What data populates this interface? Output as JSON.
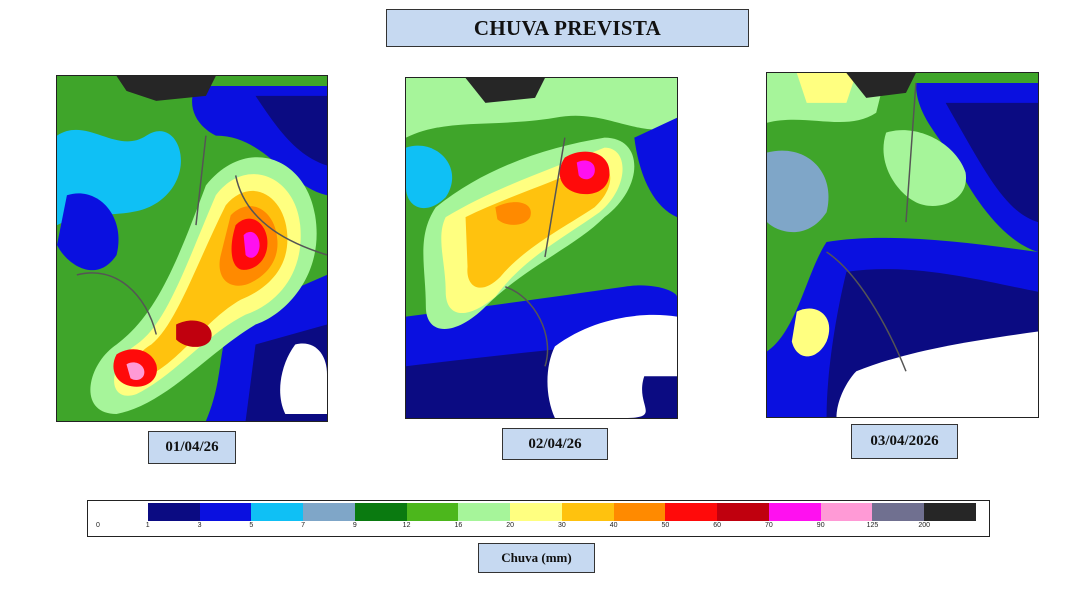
{
  "title": "CHUVA PREVISTA",
  "maps": [
    {
      "date": "01/04/26",
      "icon": "rainfall-map-day1"
    },
    {
      "date": "02/04/26",
      "icon": "rainfall-map-day2"
    },
    {
      "date": "03/04/2026",
      "icon": "rainfall-map-day3"
    }
  ],
  "legend": {
    "colors": [
      "#ffffff",
      "#0b0b82",
      "#0a10e0",
      "#0fc0f5",
      "#7fa6c8",
      "#0a7a10",
      "#4cb71c",
      "#a6f59a",
      "#ffff80",
      "#ffc20e",
      "#ff8a00",
      "#ff0a0a",
      "#c0000e",
      "#ff10f0",
      "#ff9ad6",
      "#707090",
      "#262626"
    ],
    "ticks": [
      "0",
      "1",
      "3",
      "5",
      "7",
      "9",
      "12",
      "16",
      "20",
      "30",
      "40",
      "50",
      "60",
      "70",
      "90",
      "125",
      "200"
    ],
    "unit_label": "Chuva (mm)"
  }
}
